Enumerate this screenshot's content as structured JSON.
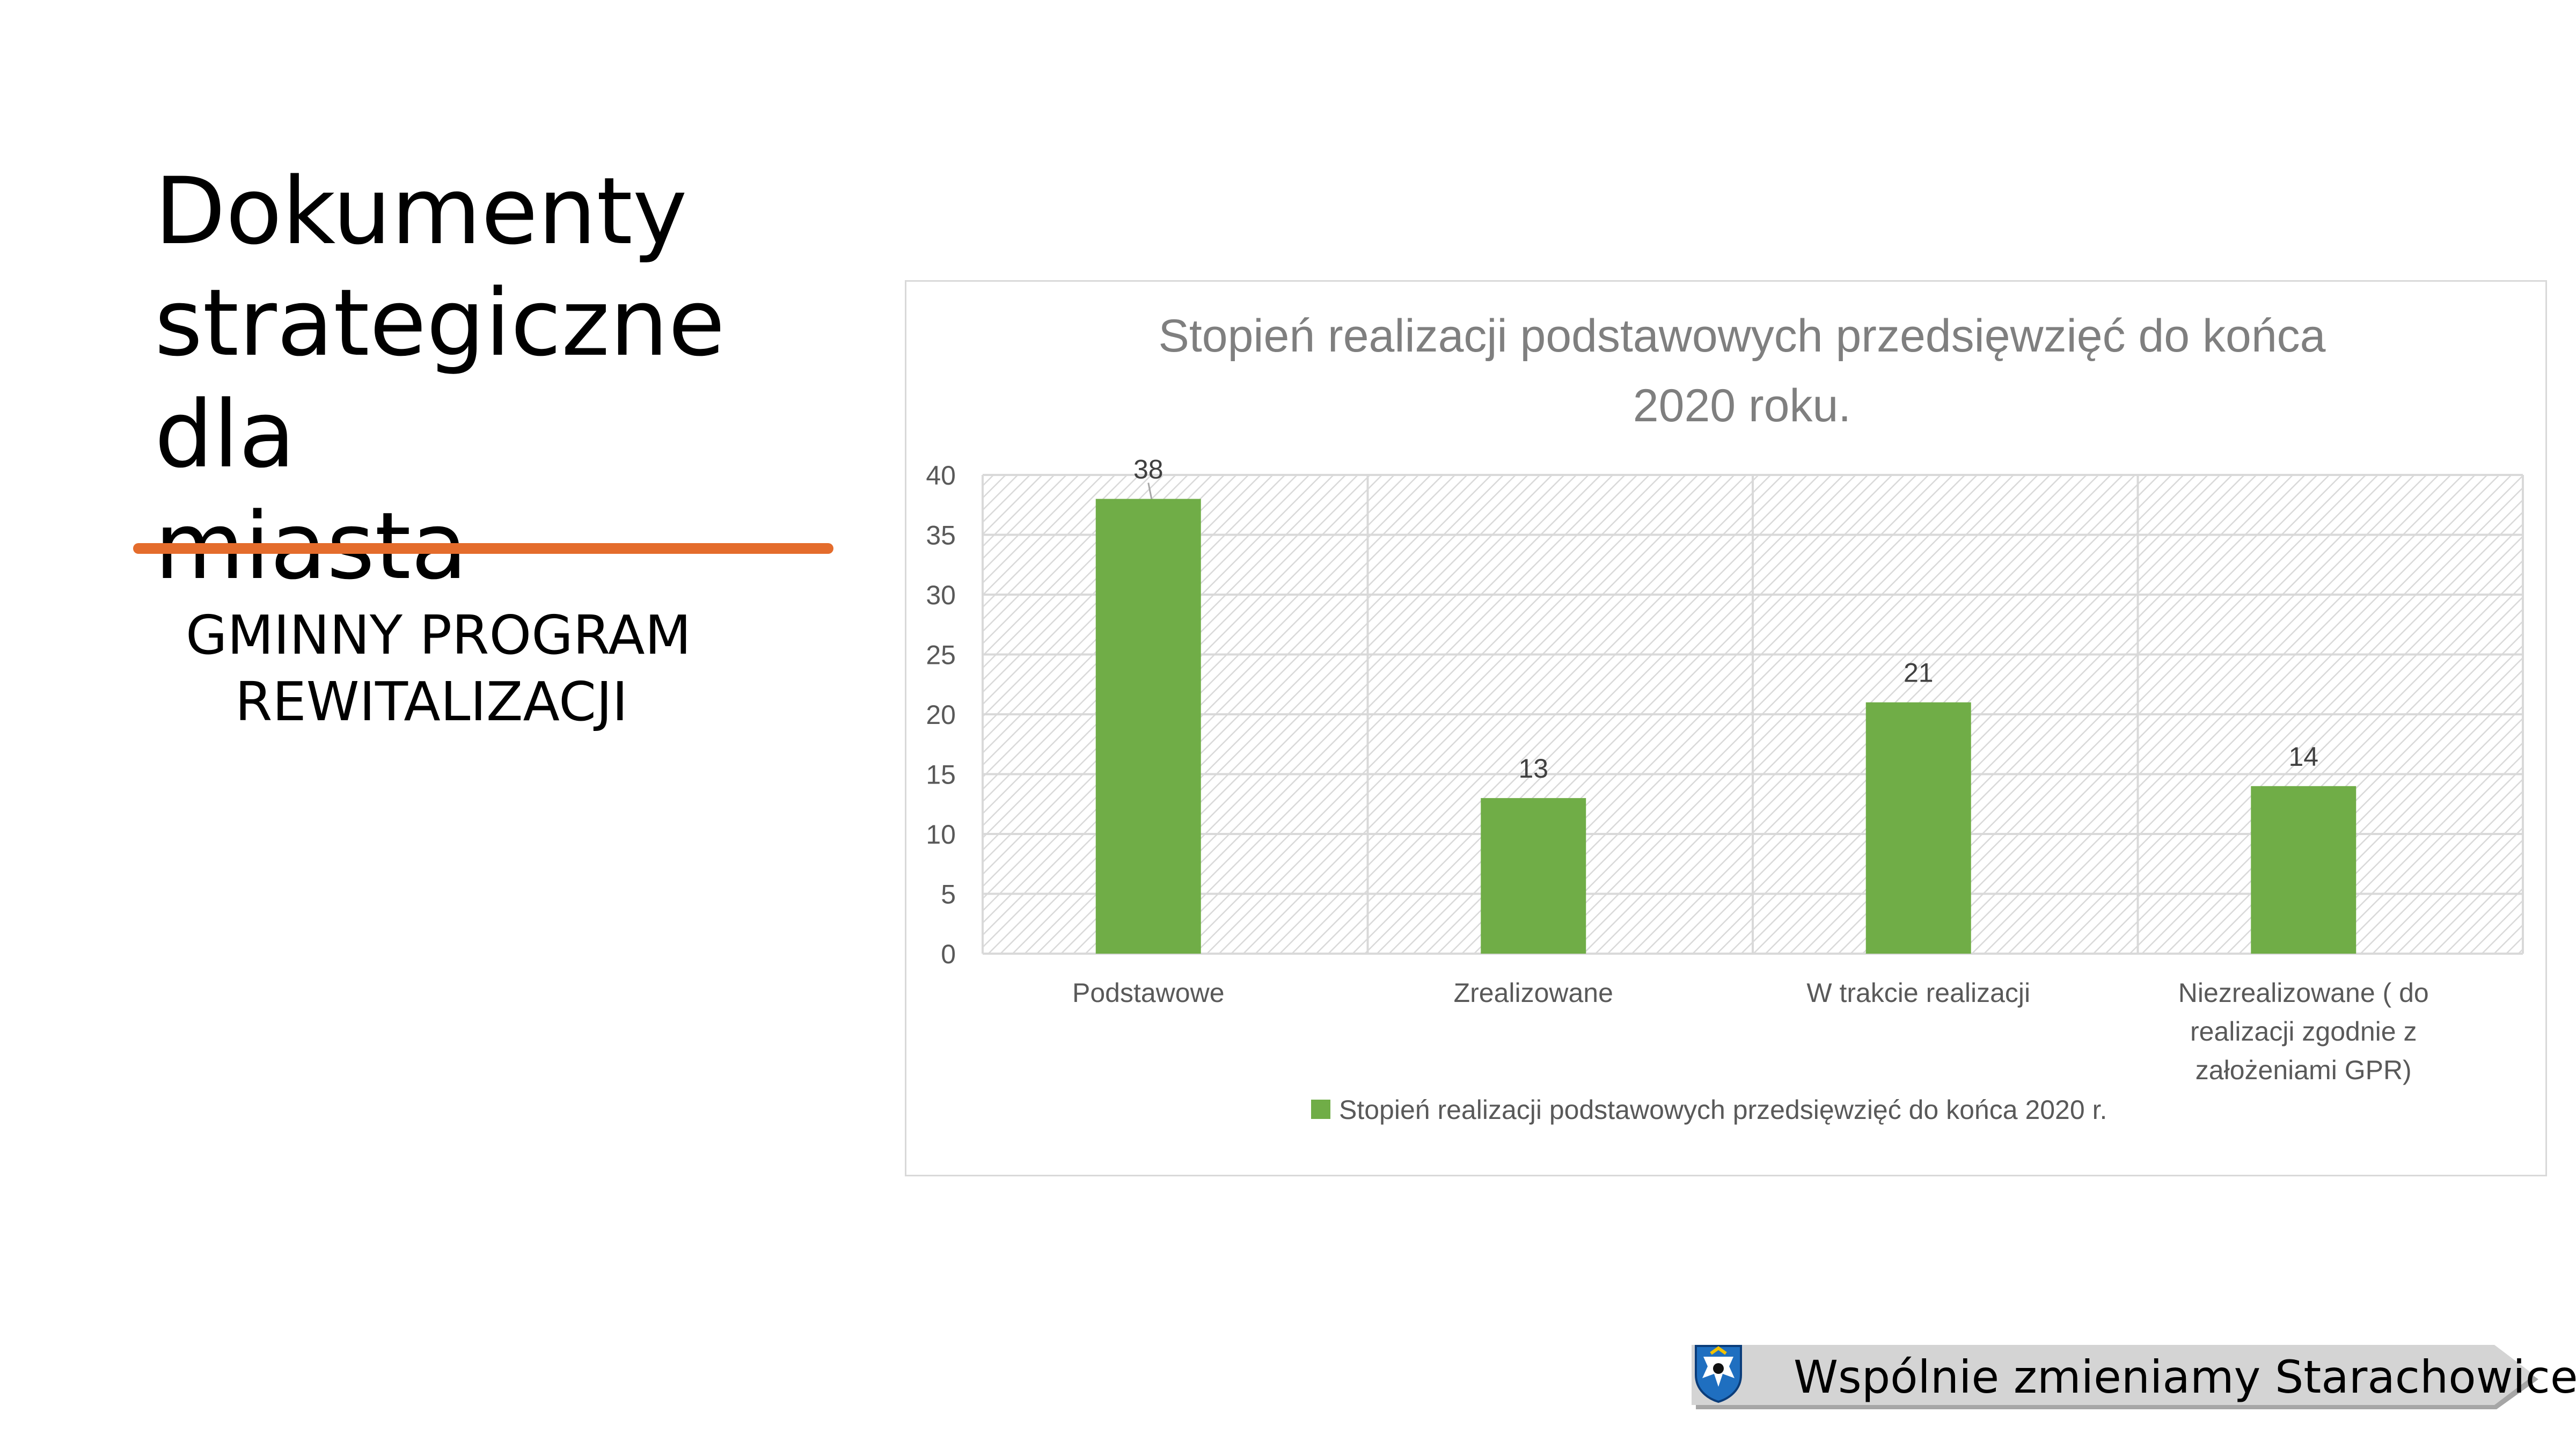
{
  "slide": {
    "title_lines": [
      "Dokumenty",
      "strategiczne dla",
      "miasta"
    ],
    "subtitle_lines": [
      "GMINNY PROGRAM",
      "REWITALIZACJI"
    ],
    "accent_color": "#e46c2c"
  },
  "chart_data": {
    "type": "bar",
    "title_lines": [
      "Stopień realizacji podstawowych przedsięwzięć do końca",
      "2020 roku."
    ],
    "categories": [
      [
        "Podstawowe"
      ],
      [
        "Zrealizowane"
      ],
      [
        "W trakcie realizacji"
      ],
      [
        "Niezrealizowane ( do",
        "realizacji zgodnie z",
        "założeniami GPR)"
      ]
    ],
    "series": [
      {
        "name": "Stopień realizacji podstawowych przedsięwzięć do końca 2020 r.",
        "values": [
          38,
          13,
          21,
          14
        ],
        "color": "#70ad47"
      }
    ],
    "data_labels": [
      "38",
      "13",
      "21",
      "14"
    ],
    "ylim": [
      0,
      40
    ],
    "yticks": [
      0,
      5,
      10,
      15,
      20,
      25,
      30,
      35,
      40
    ],
    "grid": true,
    "legend_position": "bottom"
  },
  "footer": {
    "banner_text": "Wspólnie zmieniamy Starachowice",
    "icon": "starachowice-crest-icon"
  }
}
